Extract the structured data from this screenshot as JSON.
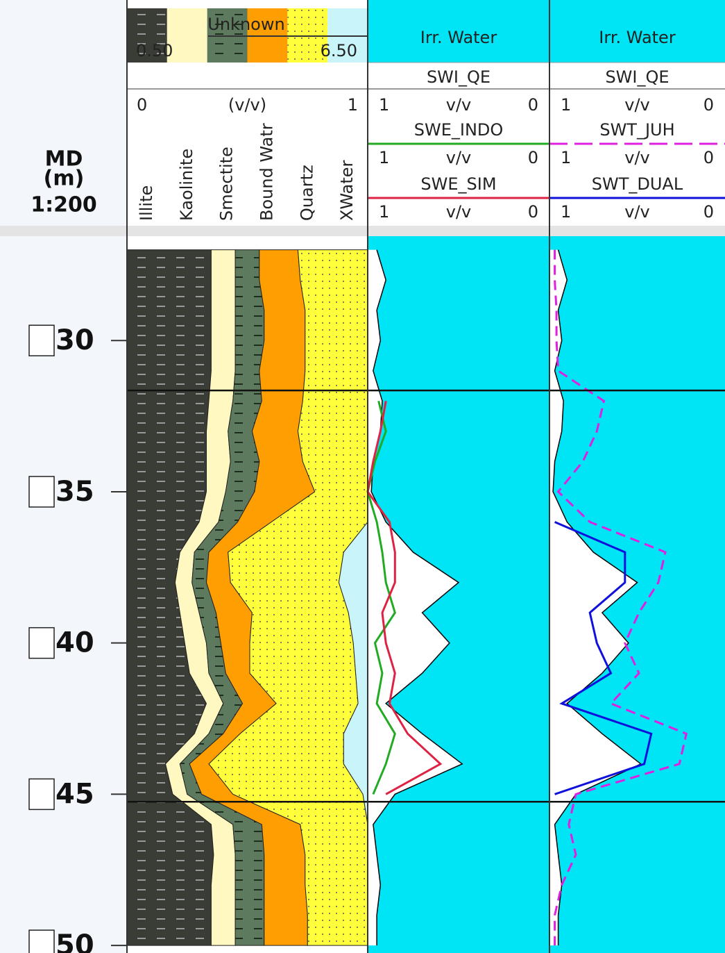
{
  "chart_data": {
    "type": "well-log",
    "depth_label": "MD",
    "depth_unit": "(m)",
    "scale": "1:200",
    "ylim": [
      26.55,
      50.25
    ],
    "yticks": [
      30,
      35,
      40,
      45,
      50
    ],
    "zone_tops": [
      31.65,
      45.25
    ],
    "depths": [
      27,
      28,
      29,
      30,
      31,
      32,
      33,
      34,
      35,
      36,
      37,
      38,
      39,
      40,
      41,
      42,
      43,
      44,
      45,
      46,
      47,
      48,
      49,
      50
    ],
    "tracks": [
      {
        "type": "stacked-area",
        "legend_title": "Unknown",
        "legend_range": [
          {
            "value": 0.5,
            "label": "0.50"
          },
          {
            "value": 6.5,
            "label": "6.50"
          }
        ],
        "xlim": [
          0,
          1
        ],
        "unit": "(v/v)",
        "series": [
          {
            "name": "Illite",
            "color": "#3a3d36",
            "pattern": "dashes",
            "values": [
              0.35,
              0.35,
              0.35,
              0.35,
              0.35,
              0.34,
              0.33,
              0.33,
              0.33,
              0.3,
              0.22,
              0.2,
              0.22,
              0.24,
              0.26,
              0.33,
              0.28,
              0.16,
              0.19,
              0.35,
              0.36,
              0.35,
              0.35,
              0.35
            ]
          },
          {
            "name": "Kaolinite",
            "color": "#fff8c0",
            "values": [
              0.1,
              0.1,
              0.1,
              0.1,
              0.1,
              0.1,
              0.09,
              0.1,
              0.08,
              0.08,
              0.06,
              0.07,
              0.08,
              0.09,
              0.08,
              0.07,
              0.06,
              0.06,
              0.06,
              0.09,
              0.09,
              0.1,
              0.1,
              0.1
            ]
          },
          {
            "name": "Smectite",
            "color": "#5e7a5e",
            "pattern": "dashes",
            "values": [
              0.1,
              0.1,
              0.12,
              0.12,
              0.1,
              0.12,
              0.1,
              0.12,
              0.12,
              0.08,
              0.06,
              0.06,
              0.07,
              0.06,
              0.07,
              0.08,
              0.06,
              0.04,
              0.06,
              0.12,
              0.12,
              0.12,
              0.12,
              0.12
            ]
          },
          {
            "name": "Bound Watr",
            "color": "#ff9e00",
            "values": [
              0.16,
              0.17,
              0.17,
              0.17,
              0.19,
              0.17,
              0.19,
              0.18,
              0.25,
              0.14,
              0.08,
              0.1,
              0.15,
              0.12,
              0.1,
              0.14,
              0.07,
              0.08,
              0.13,
              0.16,
              0.17,
              0.17,
              0.18,
              0.18
            ]
          },
          {
            "name": "Quartz",
            "color": "#ffff3c",
            "pattern": "dots",
            "values": [
              0.29,
              0.28,
              0.26,
              0.26,
              0.26,
              0.27,
              0.29,
              0.27,
              0.22,
              0.4,
              0.48,
              0.45,
              0.4,
              0.43,
              0.44,
              0.34,
              0.43,
              0.56,
              0.54,
              0.28,
              0.26,
              0.26,
              0.25,
              0.25
            ]
          },
          {
            "name": "XWater",
            "color": "#c8f4fa",
            "values": [
              0,
              0,
              0,
              0,
              0,
              0,
              0,
              0,
              0,
              0,
              0.1,
              0.12,
              0.08,
              0.06,
              0.05,
              0.04,
              0.1,
              0.1,
              0.02,
              0,
              0,
              0,
              0,
              0
            ]
          }
        ]
      },
      {
        "type": "curves",
        "title": "Irr. Water",
        "fill_color": "#00e5f5",
        "series": [
          {
            "name": "SWI_QE",
            "color": "#000000",
            "fill": "#ffffff",
            "xlim": [
              1,
              0
            ],
            "unit": "v/v",
            "values": [
              0.95,
              0.9,
              0.95,
              0.93,
              0.97,
              0.92,
              0.93,
              0.97,
              0.98,
              0.9,
              0.75,
              0.5,
              0.7,
              0.55,
              0.7,
              0.9,
              0.7,
              0.48,
              0.85,
              0.97,
              0.95,
              0.93,
              0.95,
              0.95
            ]
          },
          {
            "name": "SWE_INDO",
            "color": "#22aa22",
            "xlim": [
              1,
              0
            ],
            "unit": "v/v",
            "values": [
              null,
              null,
              null,
              null,
              null,
              0.94,
              0.9,
              0.96,
              1,
              0.95,
              0.92,
              0.9,
              0.85,
              0.96,
              0.92,
              0.95,
              0.85,
              0.9,
              0.97,
              null,
              null,
              null,
              null,
              null
            ]
          },
          {
            "name": "SWE_SIM",
            "color": "#dd2244",
            "xlim": [
              1,
              0
            ],
            "unit": "v/v",
            "values": [
              null,
              null,
              null,
              null,
              null,
              0.9,
              0.93,
              0.97,
              1,
              0.88,
              0.85,
              0.85,
              0.92,
              0.9,
              0.85,
              0.88,
              0.78,
              0.6,
              0.9,
              null,
              null,
              null,
              null,
              null
            ]
          }
        ]
      },
      {
        "type": "curves",
        "title": "Irr. Water",
        "fill_color": "#00e5f5",
        "series": [
          {
            "name": "SWI_QE",
            "color": "#000000",
            "fill": "#ffffff",
            "xlim": [
              1,
              0
            ],
            "unit": "v/v",
            "values": [
              0.95,
              0.9,
              0.95,
              0.93,
              0.97,
              0.92,
              0.93,
              0.97,
              0.98,
              0.9,
              0.75,
              0.5,
              0.7,
              0.55,
              0.7,
              0.9,
              0.7,
              0.48,
              0.85,
              0.97,
              0.95,
              0.93,
              0.95,
              0.95
            ]
          },
          {
            "name": "SWT_JUH",
            "color": "#e020e0",
            "dash": true,
            "xlim": [
              1,
              0
            ],
            "unit": "v/v",
            "values": [
              0.97,
              0.97,
              0.96,
              0.96,
              0.95,
              0.69,
              0.73,
              0.81,
              0.95,
              0.77,
              0.34,
              0.38,
              0.49,
              0.57,
              0.49,
              0.65,
              0.22,
              0.26,
              0.85,
              0.89,
              0.85,
              0.93,
              0.97,
              0.97
            ]
          },
          {
            "name": "SWT_DUAL",
            "color": "#1010dd",
            "xlim": [
              1,
              0
            ],
            "unit": "v/v",
            "values": [
              null,
              null,
              null,
              null,
              null,
              null,
              null,
              null,
              null,
              0.97,
              0.57,
              0.57,
              0.77,
              0.73,
              0.65,
              0.93,
              0.42,
              0.46,
              0.97,
              null,
              null,
              null,
              null,
              null
            ]
          }
        ]
      }
    ]
  }
}
